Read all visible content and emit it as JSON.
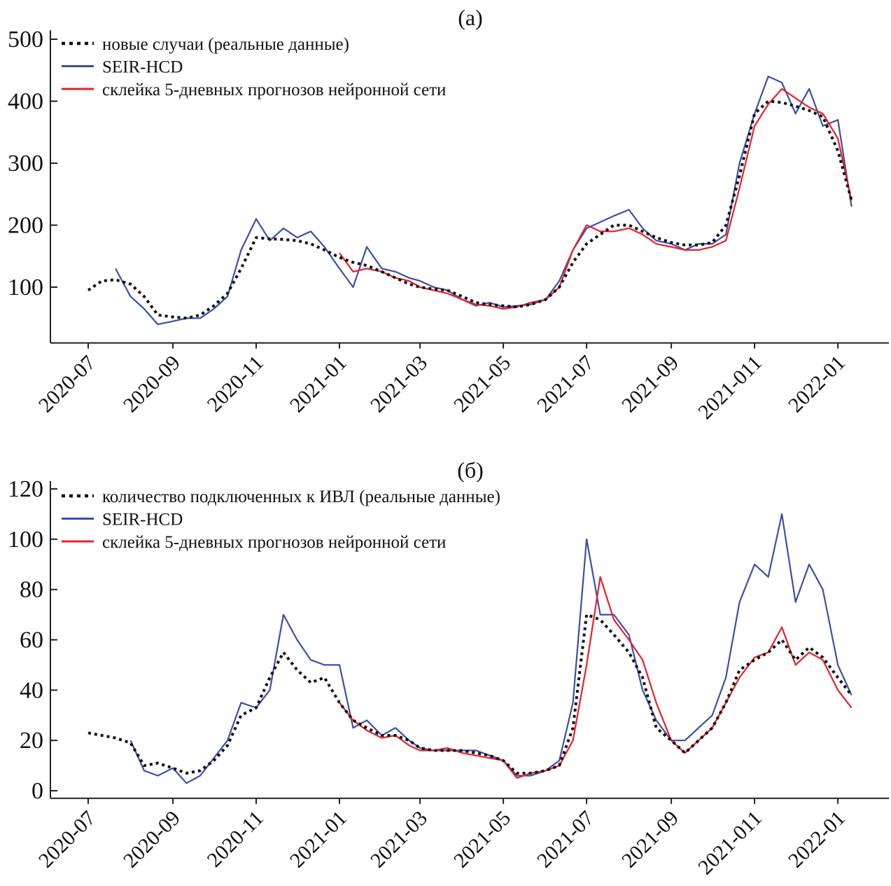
{
  "colors": {
    "real": "#111111",
    "seir": "#3a4fa8",
    "nn": "#e8202a"
  },
  "chart_data": [
    {
      "type": "line",
      "title": "(a)",
      "ylim": [
        10,
        510
      ],
      "yticks": [
        100,
        200,
        300,
        400,
        500
      ],
      "xticks": [
        "2020-07-01",
        "2020-09-01",
        "2020-11-01",
        "2021-01-01",
        "2021-03-01",
        "2021-05-01",
        "2021-07-01",
        "2021-09-01",
        "2021-11-01",
        "2022-01-01"
      ],
      "xtick_labels": [
        "2020-07",
        "2020-09",
        "2020-11",
        "2021-01",
        "2021-03",
        "2021-05",
        "2021-07",
        "2021-09",
        "2021-011",
        "2022-01"
      ],
      "legend_position": "top-left",
      "x": [
        "2020-07-01",
        "2020-07-11",
        "2020-07-21",
        "2020-08-01",
        "2020-08-11",
        "2020-08-21",
        "2020-09-01",
        "2020-09-11",
        "2020-09-21",
        "2020-10-01",
        "2020-10-11",
        "2020-10-21",
        "2020-11-01",
        "2020-11-11",
        "2020-11-21",
        "2020-12-01",
        "2020-12-11",
        "2020-12-21",
        "2021-01-01",
        "2021-01-11",
        "2021-01-21",
        "2021-02-01",
        "2021-02-11",
        "2021-02-21",
        "2021-03-01",
        "2021-03-11",
        "2021-03-21",
        "2021-04-01",
        "2021-04-11",
        "2021-04-21",
        "2021-05-01",
        "2021-05-11",
        "2021-05-21",
        "2021-06-01",
        "2021-06-11",
        "2021-06-21",
        "2021-07-01",
        "2021-07-11",
        "2021-07-21",
        "2021-08-01",
        "2021-08-11",
        "2021-08-21",
        "2021-09-01",
        "2021-09-11",
        "2021-09-21",
        "2021-10-01",
        "2021-10-11",
        "2021-10-21",
        "2021-11-01",
        "2021-11-11",
        "2021-11-21",
        "2021-12-01",
        "2021-12-11",
        "2021-12-21",
        "2022-01-01",
        "2022-01-11"
      ],
      "series": [
        {
          "name": "новые случаи (реальные данные)",
          "style": "dotted",
          "color": "#111111",
          "values": [
            95,
            110,
            112,
            105,
            85,
            55,
            52,
            50,
            55,
            70,
            90,
            130,
            180,
            178,
            177,
            175,
            170,
            160,
            148,
            140,
            135,
            125,
            115,
            105,
            100,
            97,
            95,
            85,
            75,
            72,
            70,
            68,
            72,
            80,
            100,
            140,
            170,
            185,
            200,
            200,
            190,
            180,
            172,
            168,
            168,
            172,
            200,
            280,
            380,
            400,
            398,
            392,
            385,
            375,
            320,
            240
          ]
        },
        {
          "name": "SEIR-HCD",
          "style": "solid",
          "color": "#3a4fa8",
          "values": [
            null,
            null,
            130,
            85,
            65,
            40,
            45,
            50,
            50,
            65,
            85,
            160,
            210,
            175,
            195,
            180,
            190,
            165,
            130,
            100,
            165,
            130,
            125,
            115,
            110,
            100,
            95,
            80,
            70,
            75,
            68,
            70,
            72,
            80,
            110,
            160,
            195,
            205,
            215,
            225,
            195,
            175,
            170,
            160,
            170,
            170,
            185,
            300,
            380,
            440,
            430,
            380,
            420,
            360,
            370,
            230
          ]
        },
        {
          "name": "склейка 5-дневных прогнозов нейронной сети",
          "style": "solid",
          "color": "#e8202a",
          "values": [
            null,
            null,
            null,
            null,
            null,
            null,
            null,
            null,
            null,
            null,
            null,
            null,
            null,
            null,
            null,
            null,
            null,
            null,
            155,
            125,
            130,
            125,
            115,
            110,
            100,
            95,
            90,
            80,
            72,
            70,
            65,
            68,
            75,
            80,
            100,
            160,
            200,
            190,
            190,
            195,
            185,
            170,
            165,
            160,
            160,
            165,
            175,
            260,
            360,
            395,
            420,
            405,
            390,
            380,
            340,
            240
          ]
        }
      ]
    },
    {
      "type": "line",
      "title": "(б)",
      "ylim": [
        -3,
        122
      ],
      "yticks": [
        0,
        20,
        40,
        60,
        80,
        100,
        120
      ],
      "xticks": [
        "2020-07-01",
        "2020-09-01",
        "2020-11-01",
        "2021-01-01",
        "2021-03-01",
        "2021-05-01",
        "2021-07-01",
        "2021-09-01",
        "2021-11-01",
        "2022-01-01"
      ],
      "xtick_labels": [
        "2020-07",
        "2020-09",
        "2020-11",
        "2021-01",
        "2021-03",
        "2021-05",
        "2021-07",
        "2021-09",
        "2021-011",
        "2022-01"
      ],
      "legend_position": "top-left",
      "x": [
        "2020-07-01",
        "2020-07-11",
        "2020-07-21",
        "2020-08-01",
        "2020-08-11",
        "2020-08-21",
        "2020-09-01",
        "2020-09-11",
        "2020-09-21",
        "2020-10-01",
        "2020-10-11",
        "2020-10-21",
        "2020-11-01",
        "2020-11-11",
        "2020-11-21",
        "2020-12-01",
        "2020-12-11",
        "2020-12-21",
        "2021-01-01",
        "2021-01-11",
        "2021-01-21",
        "2021-02-01",
        "2021-02-11",
        "2021-02-21",
        "2021-03-01",
        "2021-03-11",
        "2021-03-21",
        "2021-04-01",
        "2021-04-11",
        "2021-04-21",
        "2021-05-01",
        "2021-05-11",
        "2021-05-21",
        "2021-06-01",
        "2021-06-11",
        "2021-06-21",
        "2021-07-01",
        "2021-07-11",
        "2021-07-21",
        "2021-08-01",
        "2021-08-11",
        "2021-08-21",
        "2021-09-01",
        "2021-09-11",
        "2021-09-21",
        "2021-10-01",
        "2021-10-11",
        "2021-10-21",
        "2021-11-01",
        "2021-11-11",
        "2021-11-21",
        "2021-12-01",
        "2021-12-11",
        "2021-12-21",
        "2022-01-01",
        "2022-01-11"
      ],
      "series": [
        {
          "name": "количество подключенных к ИВЛ (реальные данные)",
          "style": "dotted",
          "color": "#111111",
          "values": [
            23,
            22,
            21,
            19,
            10,
            11,
            9,
            7,
            8,
            12,
            18,
            30,
            33,
            45,
            55,
            48,
            43,
            45,
            35,
            28,
            25,
            22,
            22,
            20,
            17,
            16,
            16,
            16,
            15,
            14,
            12,
            7,
            7,
            8,
            10,
            25,
            70,
            68,
            62,
            55,
            45,
            25,
            20,
            15,
            20,
            25,
            35,
            48,
            52,
            55,
            60,
            52,
            57,
            53,
            45,
            38
          ]
        },
        {
          "name": "SEIR-HCD",
          "style": "solid",
          "color": "#3a4fa8",
          "values": [
            null,
            null,
            null,
            20,
            8,
            6,
            9,
            3,
            6,
            13,
            20,
            35,
            33,
            40,
            70,
            60,
            52,
            50,
            50,
            25,
            28,
            22,
            25,
            20,
            17,
            16,
            16,
            16,
            16,
            14,
            12,
            6,
            6,
            8,
            12,
            35,
            100,
            70,
            70,
            62,
            40,
            28,
            20,
            20,
            25,
            30,
            45,
            75,
            90,
            85,
            110,
            75,
            90,
            80,
            50,
            38
          ]
        },
        {
          "name": "склейка 5-дневных прогнозов нейронной сети",
          "style": "solid",
          "color": "#e8202a",
          "values": [
            null,
            null,
            null,
            null,
            null,
            null,
            null,
            null,
            null,
            null,
            null,
            null,
            null,
            null,
            null,
            null,
            null,
            null,
            35,
            28,
            24,
            21,
            22,
            18,
            16,
            16,
            17,
            15,
            14,
            13,
            12,
            5,
            7,
            8,
            10,
            20,
            50,
            85,
            68,
            60,
            52,
            35,
            20,
            15,
            20,
            25,
            35,
            45,
            53,
            55,
            65,
            50,
            55,
            52,
            40,
            33
          ]
        }
      ]
    }
  ]
}
